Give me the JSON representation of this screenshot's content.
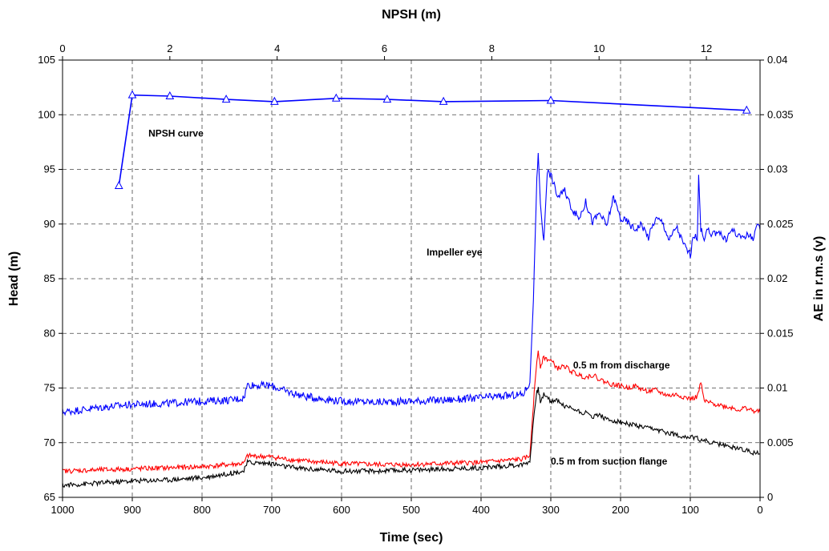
{
  "chart_data": {
    "type": "line",
    "title": "",
    "xlabel": "Time (sec)",
    "x2label": "NPSH (m)",
    "ylabel": "Head (m)",
    "y2label": "AE in r.m.s (v)",
    "xlim": [
      1000,
      0
    ],
    "x2lim": [
      0,
      13.0
    ],
    "ylim": [
      65,
      105
    ],
    "y2lim": [
      0,
      0.04
    ],
    "grid": true,
    "x_ticks": [
      "1000",
      "900",
      "800",
      "700",
      "600",
      "500",
      "400",
      "300",
      "200",
      "100",
      "0"
    ],
    "x2_ticks": [
      "0",
      "2",
      "4",
      "6",
      "8",
      "10",
      "12"
    ],
    "y_ticks": [
      "65",
      "70",
      "75",
      "80",
      "85",
      "90",
      "95",
      "100",
      "105"
    ],
    "y2_ticks": [
      "0",
      "0.005",
      "0.01",
      "0.015",
      "0.02",
      "0.025",
      "0.03",
      "0.035",
      "0.04"
    ],
    "annotations": [
      {
        "text": "NPSH curve",
        "x_npsh": 1.6,
        "y_head": 98.3
      },
      {
        "text": "Impeller eye",
        "x_time": 478,
        "y_head": 87.4
      },
      {
        "text": "0.5 m from discharge",
        "x_time": 268,
        "y_head": 77.1
      },
      {
        "text": "0.5 m  from suction flange",
        "x_time": 300,
        "y_head": 68.3
      }
    ],
    "series": [
      {
        "name": "",
        "axis": "npsh-head",
        "color": "#0000ff",
        "marker": "triangle",
        "x": [
          1.05,
          1.3,
          2.0,
          3.05,
          3.95,
          5.1,
          6.05,
          7.1,
          9.1,
          12.75
        ],
        "y": [
          93.5,
          101.8,
          101.7,
          101.4,
          101.2,
          101.5,
          101.4,
          101.2,
          101.3,
          100.4
        ]
      },
      {
        "name": "",
        "axis": "time-ae",
        "color": "#0000ff",
        "x": [
          1000,
          950,
          900,
          850,
          800,
          760,
          740,
          735,
          700,
          680,
          650,
          600,
          550,
          500,
          450,
          400,
          340,
          330,
          325,
          320,
          318,
          315,
          310,
          305,
          300,
          290,
          280,
          270,
          260,
          250,
          240,
          230,
          220,
          210,
          200,
          190,
          180,
          170,
          160,
          150,
          140,
          130,
          120,
          110,
          100,
          95,
          90,
          88,
          85,
          80,
          75,
          70,
          60,
          50,
          40,
          30,
          20,
          10,
          5,
          0
        ],
        "y": [
          0.0078,
          0.0082,
          0.0085,
          0.0086,
          0.0088,
          0.0089,
          0.0091,
          0.0103,
          0.0102,
          0.0097,
          0.0092,
          0.0088,
          0.0087,
          0.0088,
          0.0089,
          0.0091,
          0.0094,
          0.0105,
          0.018,
          0.029,
          0.0315,
          0.027,
          0.0235,
          0.0298,
          0.0295,
          0.0275,
          0.028,
          0.0265,
          0.0255,
          0.027,
          0.0252,
          0.026,
          0.0248,
          0.0275,
          0.0255,
          0.0252,
          0.0245,
          0.025,
          0.0238,
          0.0255,
          0.0252,
          0.0235,
          0.0248,
          0.0232,
          0.0222,
          0.024,
          0.0235,
          0.0295,
          0.0245,
          0.0238,
          0.0245,
          0.0238,
          0.0245,
          0.0235,
          0.0245,
          0.0238,
          0.024,
          0.0238,
          0.0248,
          0.0245
        ]
      },
      {
        "name": "",
        "axis": "time-ae",
        "color": "#ff0000",
        "x": [
          1000,
          950,
          900,
          850,
          800,
          760,
          740,
          735,
          700,
          680,
          650,
          600,
          550,
          500,
          450,
          400,
          340,
          330,
          325,
          320,
          318,
          315,
          310,
          300,
          290,
          280,
          270,
          260,
          250,
          240,
          230,
          220,
          210,
          200,
          190,
          180,
          170,
          160,
          150,
          140,
          130,
          120,
          110,
          100,
          90,
          85,
          80,
          70,
          60,
          50,
          40,
          30,
          20,
          10,
          0
        ],
        "y": [
          0.0024,
          0.0025,
          0.0026,
          0.0027,
          0.0028,
          0.003,
          0.0031,
          0.0038,
          0.0037,
          0.0035,
          0.0033,
          0.0031,
          0.003,
          0.003,
          0.0031,
          0.0032,
          0.0035,
          0.0038,
          0.0085,
          0.0125,
          0.0135,
          0.012,
          0.0128,
          0.0125,
          0.0118,
          0.012,
          0.0115,
          0.0112,
          0.011,
          0.0112,
          0.0108,
          0.0105,
          0.0103,
          0.0102,
          0.01,
          0.0102,
          0.0099,
          0.0097,
          0.0098,
          0.0095,
          0.0093,
          0.0094,
          0.0092,
          0.009,
          0.0092,
          0.0105,
          0.0088,
          0.0086,
          0.0085,
          0.0083,
          0.0082,
          0.008,
          0.0082,
          0.0079,
          0.0078
        ]
      },
      {
        "name": "",
        "axis": "time-ae",
        "color": "#000000",
        "x": [
          1000,
          950,
          900,
          850,
          800,
          760,
          740,
          735,
          700,
          680,
          650,
          600,
          550,
          500,
          450,
          400,
          340,
          330,
          325,
          320,
          318,
          315,
          310,
          300,
          290,
          280,
          270,
          260,
          250,
          240,
          230,
          220,
          210,
          200,
          190,
          180,
          170,
          160,
          150,
          140,
          130,
          120,
          110,
          100,
          90,
          80,
          70,
          60,
          50,
          40,
          30,
          20,
          10,
          0
        ],
        "y": [
          0.0011,
          0.0013,
          0.0015,
          0.0016,
          0.0018,
          0.0022,
          0.0024,
          0.0032,
          0.0031,
          0.0028,
          0.0026,
          0.0024,
          0.0024,
          0.0025,
          0.0026,
          0.0027,
          0.003,
          0.0033,
          0.007,
          0.0098,
          0.0099,
          0.0088,
          0.0094,
          0.0088,
          0.0089,
          0.0083,
          0.0082,
          0.0079,
          0.0077,
          0.0074,
          0.0076,
          0.0071,
          0.007,
          0.0069,
          0.0067,
          0.0066,
          0.0064,
          0.0063,
          0.0062,
          0.006,
          0.0059,
          0.0057,
          0.0056,
          0.0055,
          0.0054,
          0.0052,
          0.005,
          0.0049,
          0.0047,
          0.0046,
          0.0045,
          0.0043,
          0.0041,
          0.004
        ]
      }
    ]
  }
}
